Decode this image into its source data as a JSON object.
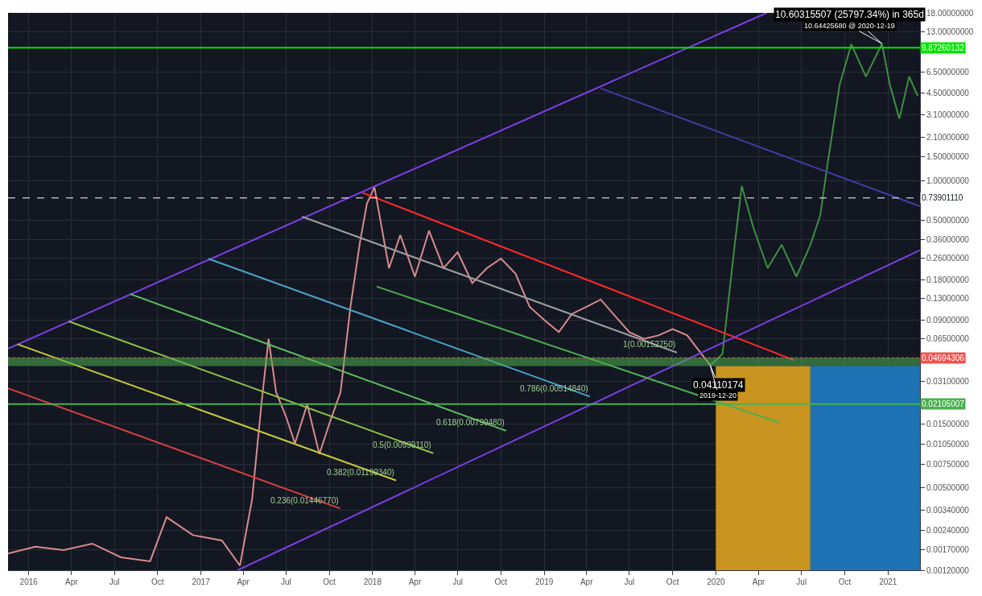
{
  "chart_data": {
    "type": "line",
    "xlim": [
      "2015-11-18",
      "2021-03-10"
    ],
    "xticks": [
      {
        "value": "2016-01-01",
        "label": "2016"
      },
      {
        "value": "2016-04-01",
        "label": "Apr"
      },
      {
        "value": "2016-07-01",
        "label": "Jul"
      },
      {
        "value": "2016-10-01",
        "label": "Oct"
      },
      {
        "value": "2017-01-01",
        "label": "2017"
      },
      {
        "value": "2017-04-01",
        "label": "Apr"
      },
      {
        "value": "2017-07-01",
        "label": "Jul"
      },
      {
        "value": "2017-10-01",
        "label": "Oct"
      },
      {
        "value": "2018-01-01",
        "label": "2018"
      },
      {
        "value": "2018-04-01",
        "label": "Apr"
      },
      {
        "value": "2018-07-01",
        "label": "Jul"
      },
      {
        "value": "2018-10-01",
        "label": "Oct"
      },
      {
        "value": "2019-01-01",
        "label": "2019"
      },
      {
        "value": "2019-04-01",
        "label": "Apr"
      },
      {
        "value": "2019-07-01",
        "label": "Jul"
      },
      {
        "value": "2019-10-01",
        "label": "Oct"
      },
      {
        "value": "2020-01-01",
        "label": "2020"
      },
      {
        "value": "2020-04-01",
        "label": "Apr"
      },
      {
        "value": "2020-07-01",
        "label": "Jul"
      },
      {
        "value": "2020-10-01",
        "label": "Oct"
      },
      {
        "value": "2021-01-01",
        "label": "2021"
      }
    ],
    "ylim": [
      0.0012,
      18
    ],
    "log": true,
    "grid": true,
    "yticks": [
      {
        "value": 0.0012,
        "label": "0.00120000"
      },
      {
        "value": 0.0017,
        "label": "0.00170000"
      },
      {
        "value": 0.0024,
        "label": "0.00240000"
      },
      {
        "value": 0.0034,
        "label": "0.00340000"
      },
      {
        "value": 0.005,
        "label": "0.00500000"
      },
      {
        "value": 0.0075,
        "label": "0.00750000"
      },
      {
        "value": 0.0105,
        "label": "0.01050000"
      },
      {
        "value": 0.015,
        "label": "0.01500000"
      },
      {
        "value": 0.031,
        "label": "0.03100000"
      },
      {
        "value": 0.065,
        "label": "0.06500000"
      },
      {
        "value": 0.09,
        "label": "0.09000000"
      },
      {
        "value": 0.13,
        "label": "0.13000000"
      },
      {
        "value": 0.18,
        "label": "0.18000000"
      },
      {
        "value": 0.26,
        "label": "0.26000000"
      },
      {
        "value": 0.36,
        "label": "0.36000000"
      },
      {
        "value": 0.5,
        "label": "0.50000000"
      },
      {
        "value": 1,
        "label": "1.00000000"
      },
      {
        "value": 1.5,
        "label": "1.50000000"
      },
      {
        "value": 2.1,
        "label": "2.10000000"
      },
      {
        "value": 3.1,
        "label": "3.10000000"
      },
      {
        "value": 4.5,
        "label": "4.50000000"
      },
      {
        "value": 6.5,
        "label": "6.50000000"
      },
      {
        "value": 13,
        "label": "13.00000000"
      },
      {
        "value": 18,
        "label": "18.00000000"
      }
    ],
    "series": [
      {
        "type": "area",
        "color": "#c8941f",
        "x": [
          "2020-01-01",
          "2020-07-20"
        ],
        "values": [
          0.0407,
          0.0407
        ]
      },
      {
        "type": "area",
        "color": "#1e73b4",
        "x": [
          "2020-07-20",
          "2021-03-10"
        ],
        "values": [
          0.0407,
          0.0407
        ]
      },
      {
        "color": "#d98c8a",
        "x": [
          "2015-11-18",
          "2016-01-15",
          "2016-03-15",
          "2016-05-15",
          "2016-07-15",
          "2016-09-15",
          "2016-10-20",
          "2016-12-15",
          "2017-02-15",
          "2017-03-25",
          "2017-04-20",
          "2017-05-10",
          "2017-05-25",
          "2017-06-10",
          "2017-07-01",
          "2017-07-20",
          "2017-08-15",
          "2017-09-10",
          "2017-10-01",
          "2017-10-25",
          "2017-11-15",
          "2017-12-05",
          "2017-12-20",
          "2018-01-05",
          "2018-02-05",
          "2018-03-01",
          "2018-04-01",
          "2018-05-01",
          "2018-06-01",
          "2018-07-01",
          "2018-08-01",
          "2018-09-01",
          "2018-10-01",
          "2018-11-01",
          "2018-12-01",
          "2019-01-01",
          "2019-02-01",
          "2019-03-01",
          "2019-04-01",
          "2019-05-01",
          "2019-06-01",
          "2019-07-01",
          "2019-08-01",
          "2019-09-01",
          "2019-10-01",
          "2019-11-01",
          "2019-12-20"
        ],
        "values": [
          0.0016,
          0.0018,
          0.0017,
          0.0019,
          0.0015,
          0.0014,
          0.003,
          0.0022,
          0.002,
          0.0013,
          0.0041,
          0.0216,
          0.065,
          0.0258,
          0.017,
          0.0107,
          0.021,
          0.0089,
          0.015,
          0.026,
          0.113,
          0.34,
          0.67,
          0.89,
          0.22,
          0.39,
          0.19,
          0.42,
          0.22,
          0.29,
          0.17,
          0.22,
          0.26,
          0.2,
          0.113,
          0.09,
          0.073,
          0.1,
          0.113,
          0.128,
          0.096,
          0.073,
          0.065,
          0.069,
          0.077,
          0.069,
          0.0411
        ]
      },
      {
        "color": "#3e8e41",
        "x": [
          "2019-12-20",
          "2020-01-15",
          "2020-02-10",
          "2020-02-25",
          "2020-03-20",
          "2020-04-20",
          "2020-05-20",
          "2020-06-20",
          "2020-07-20",
          "2020-08-10",
          "2020-08-25",
          "2020-09-20",
          "2020-10-15",
          "2020-11-15",
          "2020-12-19",
          "2021-01-05",
          "2021-01-25",
          "2021-02-15",
          "2021-03-05"
        ],
        "values": [
          0.0411,
          0.05,
          0.33,
          0.91,
          0.45,
          0.22,
          0.33,
          0.19,
          0.33,
          0.55,
          1.3,
          5.2,
          10.5,
          6,
          10.6,
          5.2,
          2.9,
          6,
          4.3
        ]
      },
      {
        "type": "line",
        "color": "#ff2a2a",
        "x": [
          "2017-12-10",
          "2020-06-15"
        ],
        "values": [
          0.81,
          0.045
        ]
      },
      {
        "type": "line",
        "color": "#7b3fe4",
        "x": [
          "2015-11-18",
          "2020-04-18"
        ],
        "values": [
          0.055,
          18
        ]
      },
      {
        "type": "line",
        "color": "#7b3fe4",
        "x": [
          "2017-03-20",
          "2021-03-10"
        ],
        "values": [
          0.0012,
          0.3
        ]
      },
      {
        "type": "line",
        "color": "#4caf50",
        "x": [
          "2018-01-10",
          "2020-05-15"
        ],
        "values": [
          0.16,
          0.0153
        ]
      },
      {
        "type": "line",
        "color": "#3f3fa8",
        "x": [
          "2019-05-01",
          "2021-03-10"
        ],
        "values": [
          4.9,
          0.64
        ]
      },
      {
        "type": "line",
        "color": "#9e9e9e",
        "x": [
          "2017-08-04",
          "2019-10-10"
        ],
        "values": [
          0.535,
          0.0513
        ]
      },
      {
        "type": "line",
        "color": "#4aa3c7",
        "x": [
          "2017-01-17",
          "2019-04-08"
        ],
        "values": [
          0.259,
          0.024
        ]
      },
      {
        "type": "line",
        "color": "#5fbf5f",
        "x": [
          "2016-08-04",
          "2018-10-12"
        ],
        "values": [
          0.1407,
          0.0133
        ]
      },
      {
        "type": "line",
        "color": "#8bc34a",
        "x": [
          "2016-03-26",
          "2018-05-10"
        ],
        "values": [
          0.0879,
          0.00903
        ]
      },
      {
        "type": "line",
        "color": "#c8c83a",
        "x": [
          "2015-12-08",
          "2018-02-20"
        ],
        "values": [
          0.0593,
          0.00565
        ]
      },
      {
        "type": "line",
        "color": "#d04040",
        "x": [
          "2015-11-18",
          "2017-10-24"
        ],
        "values": [
          0.0277,
          0.00348
        ]
      }
    ],
    "ref_lines": [
      {
        "axis": "y",
        "value": 9.87260132,
        "label": "9.87260132",
        "color": "#00e600"
      },
      {
        "axis": "y",
        "value": 0.7390111,
        "label": "0.73901110",
        "color": "#ffffff",
        "line_style": "dashed"
      },
      {
        "axis": "y",
        "value": 0.04694306,
        "label": "0.04694306",
        "color": "#ef5350",
        "line_style": "dotted"
      },
      {
        "axis": "y",
        "value": 0.02105007,
        "label": "0.02105007",
        "color": "#4caf50"
      }
    ],
    "bands": [
      {
        "axis": "y",
        "from": 0.0407,
        "to": 0.047,
        "color": "#4caf50"
      }
    ],
    "annotations": [
      {
        "text": "10.60315507 (25797.34%) in 365d",
        "x": "2020-12-19",
        "y": 10.6
      },
      {
        "text": "10.64425680 @ 2020-12-19",
        "x": "2020-12-19",
        "y": 10.6
      },
      {
        "text": "0.04110174",
        "x": "2019-12-20",
        "y": 0.0411
      },
      {
        "text": "2019-12-20",
        "x": "2019-12-20",
        "y": 0.0411
      },
      {
        "text": "1(0.00152750)",
        "x": "2019-10-10",
        "y": 0.0513
      },
      {
        "text": "0.786(0.00514840)",
        "x": "2019-04-08",
        "y": 0.024
      },
      {
        "text": "0.618(0.00799480)",
        "x": "2018-10-12",
        "y": 0.0133
      },
      {
        "text": "0.5(0.00999110)",
        "x": "2018-05-10",
        "y": 0.00903
      },
      {
        "text": "0.382(0.01199340)",
        "x": "2018-02-20",
        "y": 0.00565
      },
      {
        "text": "0.236(0.01446770)",
        "x": "2017-10-24",
        "y": 0.00348
      }
    ]
  }
}
